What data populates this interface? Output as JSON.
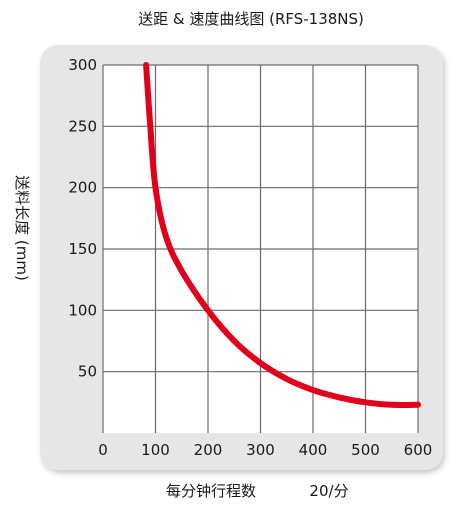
{
  "chart_data": {
    "type": "line",
    "title": "送距 & 速度曲线图 (RFS-138NS)",
    "xlabel": "每分钟行程数",
    "xunit": "20/分",
    "ylabel": "送料长度 (mm)",
    "xlim": [
      0,
      600
    ],
    "ylim": [
      0,
      300
    ],
    "xticks": [
      0,
      100,
      200,
      300,
      400,
      500,
      600
    ],
    "yticks": [
      50,
      100,
      150,
      200,
      250,
      300
    ],
    "grid": true,
    "colors": {
      "curve": "#e0001a",
      "grid": "#6b6b6b",
      "panel": "#e6e6e6",
      "plot": "#ffffff"
    },
    "series": [
      {
        "x": [
          82,
          90,
          100,
          120,
          150,
          200,
          250,
          300,
          350,
          400,
          450,
          500,
          550,
          600
        ],
        "y": [
          300,
          250,
          200,
          160,
          132,
          100,
          75,
          57,
          44,
          35,
          29,
          25,
          23,
          23
        ]
      }
    ]
  }
}
